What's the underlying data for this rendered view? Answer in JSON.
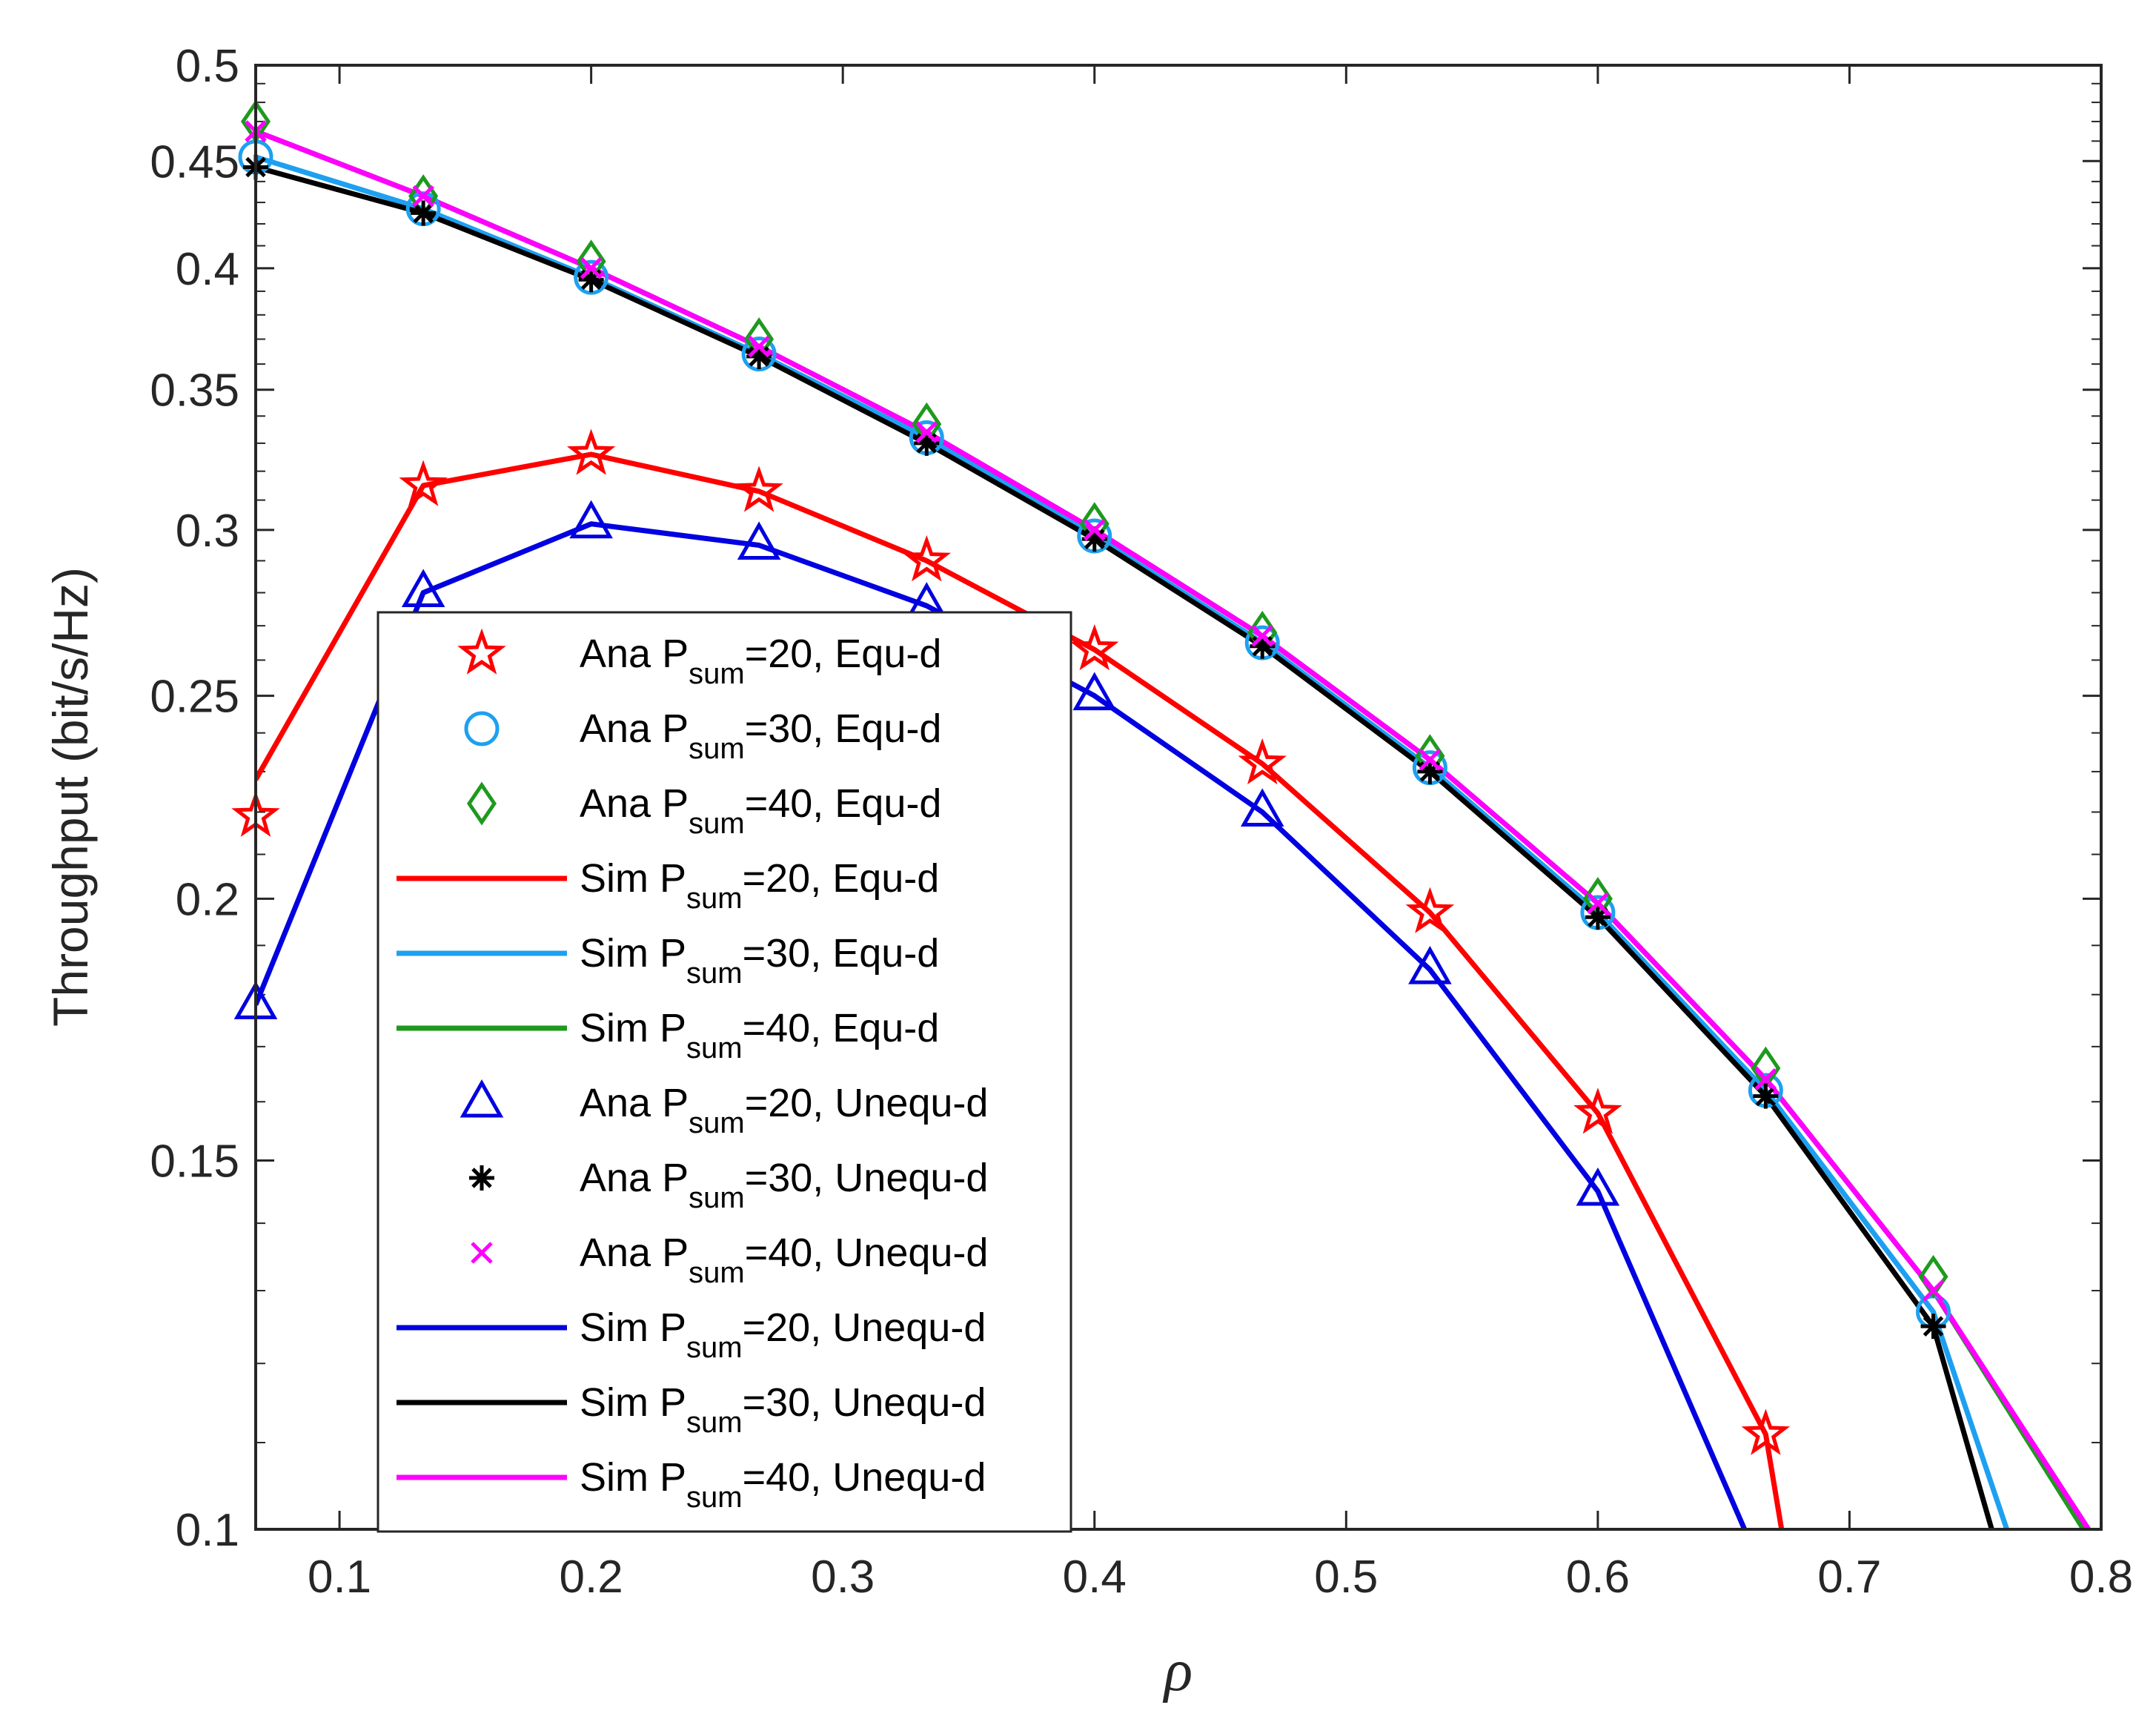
{
  "chart_data": {
    "type": "line",
    "title": "",
    "xlabel": "ρ",
    "ylabel": "Throughput (bit/s/Hz)",
    "xlim": [
      0.0667,
      0.8
    ],
    "ylim": [
      0.1,
      0.5
    ],
    "yscale": "log",
    "xticks": [
      0.1,
      0.2,
      0.3,
      0.4,
      0.5,
      0.6,
      0.7,
      0.8
    ],
    "xtick_labels": [
      "0.1",
      "0.2",
      "0.3",
      "0.4",
      "0.5",
      "0.6",
      "0.7",
      "0.8"
    ],
    "yticks": [
      0.1,
      0.15,
      0.2,
      0.25,
      0.3,
      0.35,
      0.4,
      0.45,
      0.5
    ],
    "ytick_labels": [
      "0.1",
      "0.15",
      "0.2",
      "0.25",
      "0.3",
      "0.35",
      "0.4",
      "0.45",
      "0.5"
    ],
    "legend_position": "center-left",
    "series": [
      {
        "name": "Ana P_sum=20, Equ-d",
        "legend_main": "Ana P",
        "legend_sub": "sum",
        "legend_tail": "=20, Equ-d",
        "color": "#ff0000",
        "marker": "star",
        "line": false,
        "x": [
          0.0667,
          0.1333,
          0.2,
          0.2667,
          0.3333,
          0.4,
          0.4667,
          0.5333,
          0.6,
          0.6667
        ],
        "y": [
          0.219,
          0.315,
          0.326,
          0.313,
          0.29,
          0.263,
          0.232,
          0.197,
          0.158,
          0.111
        ]
      },
      {
        "name": "Ana P_sum=30, Equ-d",
        "legend_main": "Ana P",
        "legend_sub": "sum",
        "legend_tail": "=30, Equ-d",
        "color": "#1ea0f0",
        "marker": "circle",
        "line": false,
        "x": [
          0.0667,
          0.1333,
          0.2,
          0.2667,
          0.3333,
          0.4,
          0.4667,
          0.5333,
          0.6,
          0.6667,
          0.7333
        ],
        "y": [
          0.452,
          0.427,
          0.396,
          0.364,
          0.332,
          0.298,
          0.265,
          0.231,
          0.197,
          0.162,
          0.127
        ]
      },
      {
        "name": "Ana P_sum=40, Equ-d",
        "legend_main": "Ana P",
        "legend_sub": "sum",
        "legend_tail": "=40, Equ-d",
        "color": "#1d9a1d",
        "marker": "diamond",
        "line": false,
        "x": [
          0.0667,
          0.1333,
          0.2,
          0.2667,
          0.3333,
          0.4,
          0.4667,
          0.5333,
          0.6,
          0.6667,
          0.7333
        ],
        "y": [
          0.47,
          0.433,
          0.403,
          0.37,
          0.337,
          0.302,
          0.268,
          0.234,
          0.2,
          0.166,
          0.132
        ]
      },
      {
        "name": "Sim P_sum=20, Equ-d",
        "legend_main": "Sim P",
        "legend_sub": "sum",
        "legend_tail": "=20, Equ-d",
        "color": "#ff0000",
        "marker": "none",
        "line": true,
        "x": [
          0.0667,
          0.1333,
          0.2,
          0.2667,
          0.3333,
          0.4,
          0.4667,
          0.5333,
          0.6,
          0.6667,
          0.673
        ],
        "y": [
          0.228,
          0.315,
          0.326,
          0.313,
          0.29,
          0.263,
          0.232,
          0.197,
          0.158,
          0.111,
          0.1
        ]
      },
      {
        "name": "Sim P_sum=30, Equ-d",
        "legend_main": "Sim P",
        "legend_sub": "sum",
        "legend_tail": "=30, Equ-d",
        "color": "#1ea0f0",
        "marker": "none",
        "line": true,
        "x": [
          0.0667,
          0.1333,
          0.2,
          0.2667,
          0.3333,
          0.4,
          0.4667,
          0.5333,
          0.6,
          0.6667,
          0.7333,
          0.7625
        ],
        "y": [
          0.452,
          0.427,
          0.396,
          0.364,
          0.332,
          0.298,
          0.265,
          0.231,
          0.197,
          0.162,
          0.127,
          0.1
        ]
      },
      {
        "name": "Sim P_sum=40, Equ-d",
        "legend_main": "Sim P",
        "legend_sub": "sum",
        "legend_tail": "=40, Equ-d",
        "color": "#1d9a1d",
        "marker": "none",
        "line": true,
        "x": [
          0.0667,
          0.1333,
          0.2,
          0.2667,
          0.3333,
          0.4,
          0.4667,
          0.5333,
          0.6,
          0.6667,
          0.7333,
          0.793
        ],
        "y": [
          0.465,
          0.433,
          0.4,
          0.367,
          0.334,
          0.3,
          0.267,
          0.233,
          0.199,
          0.164,
          0.13,
          0.1
        ]
      },
      {
        "name": "Ana P_sum=20, Unequ-d",
        "legend_main": "Ana P",
        "legend_sub": "sum",
        "legend_tail": "=20, Unequ-d",
        "color": "#0000e0",
        "marker": "triangle",
        "line": false,
        "x": [
          0.0667,
          0.1333,
          0.2,
          0.2667,
          0.3333,
          0.4,
          0.4667,
          0.5333,
          0.6
        ],
        "y": [
          0.178,
          0.28,
          0.302,
          0.295,
          0.276,
          0.25,
          0.22,
          0.185,
          0.145
        ]
      },
      {
        "name": "Ana P_sum=30, Unequ-d",
        "legend_main": "Ana P",
        "legend_sub": "sum",
        "legend_tail": "=30, Unequ-d",
        "color": "#000000",
        "marker": "asterisk",
        "line": false,
        "x": [
          0.0667,
          0.1333,
          0.2,
          0.2667,
          0.3333,
          0.4,
          0.4667,
          0.5333,
          0.6,
          0.6667,
          0.7333
        ],
        "y": [
          0.447,
          0.425,
          0.395,
          0.363,
          0.33,
          0.297,
          0.264,
          0.23,
          0.196,
          0.161,
          0.125
        ]
      },
      {
        "name": "Ana P_sum=40, Unequ-d",
        "legend_main": "Ana P",
        "legend_sub": "sum",
        "legend_tail": "=40, Unequ-d",
        "color": "#ff00ff",
        "marker": "x",
        "line": false,
        "x": [
          0.0667,
          0.1333,
          0.2,
          0.2667,
          0.3333,
          0.4,
          0.4667,
          0.5333,
          0.6,
          0.6667,
          0.7333
        ],
        "y": [
          0.465,
          0.433,
          0.4,
          0.367,
          0.334,
          0.3,
          0.267,
          0.233,
          0.199,
          0.164,
          0.13
        ]
      },
      {
        "name": "Sim P_sum=20, Unequ-d",
        "legend_main": "Sim P",
        "legend_sub": "sum",
        "legend_tail": "=20, Unequ-d",
        "color": "#0000e0",
        "marker": "none",
        "line": true,
        "x": [
          0.0667,
          0.1333,
          0.2,
          0.2667,
          0.3333,
          0.4,
          0.4667,
          0.5333,
          0.6,
          0.6583
        ],
        "y": [
          0.178,
          0.28,
          0.302,
          0.295,
          0.276,
          0.25,
          0.22,
          0.185,
          0.145,
          0.1
        ]
      },
      {
        "name": "Sim P_sum=30, Unequ-d",
        "legend_main": "Sim P",
        "legend_sub": "sum",
        "legend_tail": "=30, Unequ-d",
        "color": "#000000",
        "marker": "none",
        "line": true,
        "x": [
          0.0667,
          0.1333,
          0.2,
          0.2667,
          0.3333,
          0.4,
          0.4667,
          0.5333,
          0.6,
          0.6667,
          0.7333,
          0.7565
        ],
        "y": [
          0.447,
          0.425,
          0.395,
          0.363,
          0.33,
          0.297,
          0.264,
          0.23,
          0.196,
          0.161,
          0.125,
          0.1
        ]
      },
      {
        "name": "Sim P_sum=40, Unequ-d",
        "legend_main": "Sim P",
        "legend_sub": "sum",
        "legend_tail": "=40, Unequ-d",
        "color": "#ff00ff",
        "marker": "none",
        "line": true,
        "x": [
          0.0667,
          0.1333,
          0.2,
          0.2667,
          0.3333,
          0.4,
          0.4667,
          0.5333,
          0.6,
          0.6667,
          0.7333,
          0.795
        ],
        "y": [
          0.465,
          0.433,
          0.4,
          0.367,
          0.334,
          0.3,
          0.267,
          0.233,
          0.199,
          0.164,
          0.13,
          0.1
        ]
      }
    ]
  }
}
